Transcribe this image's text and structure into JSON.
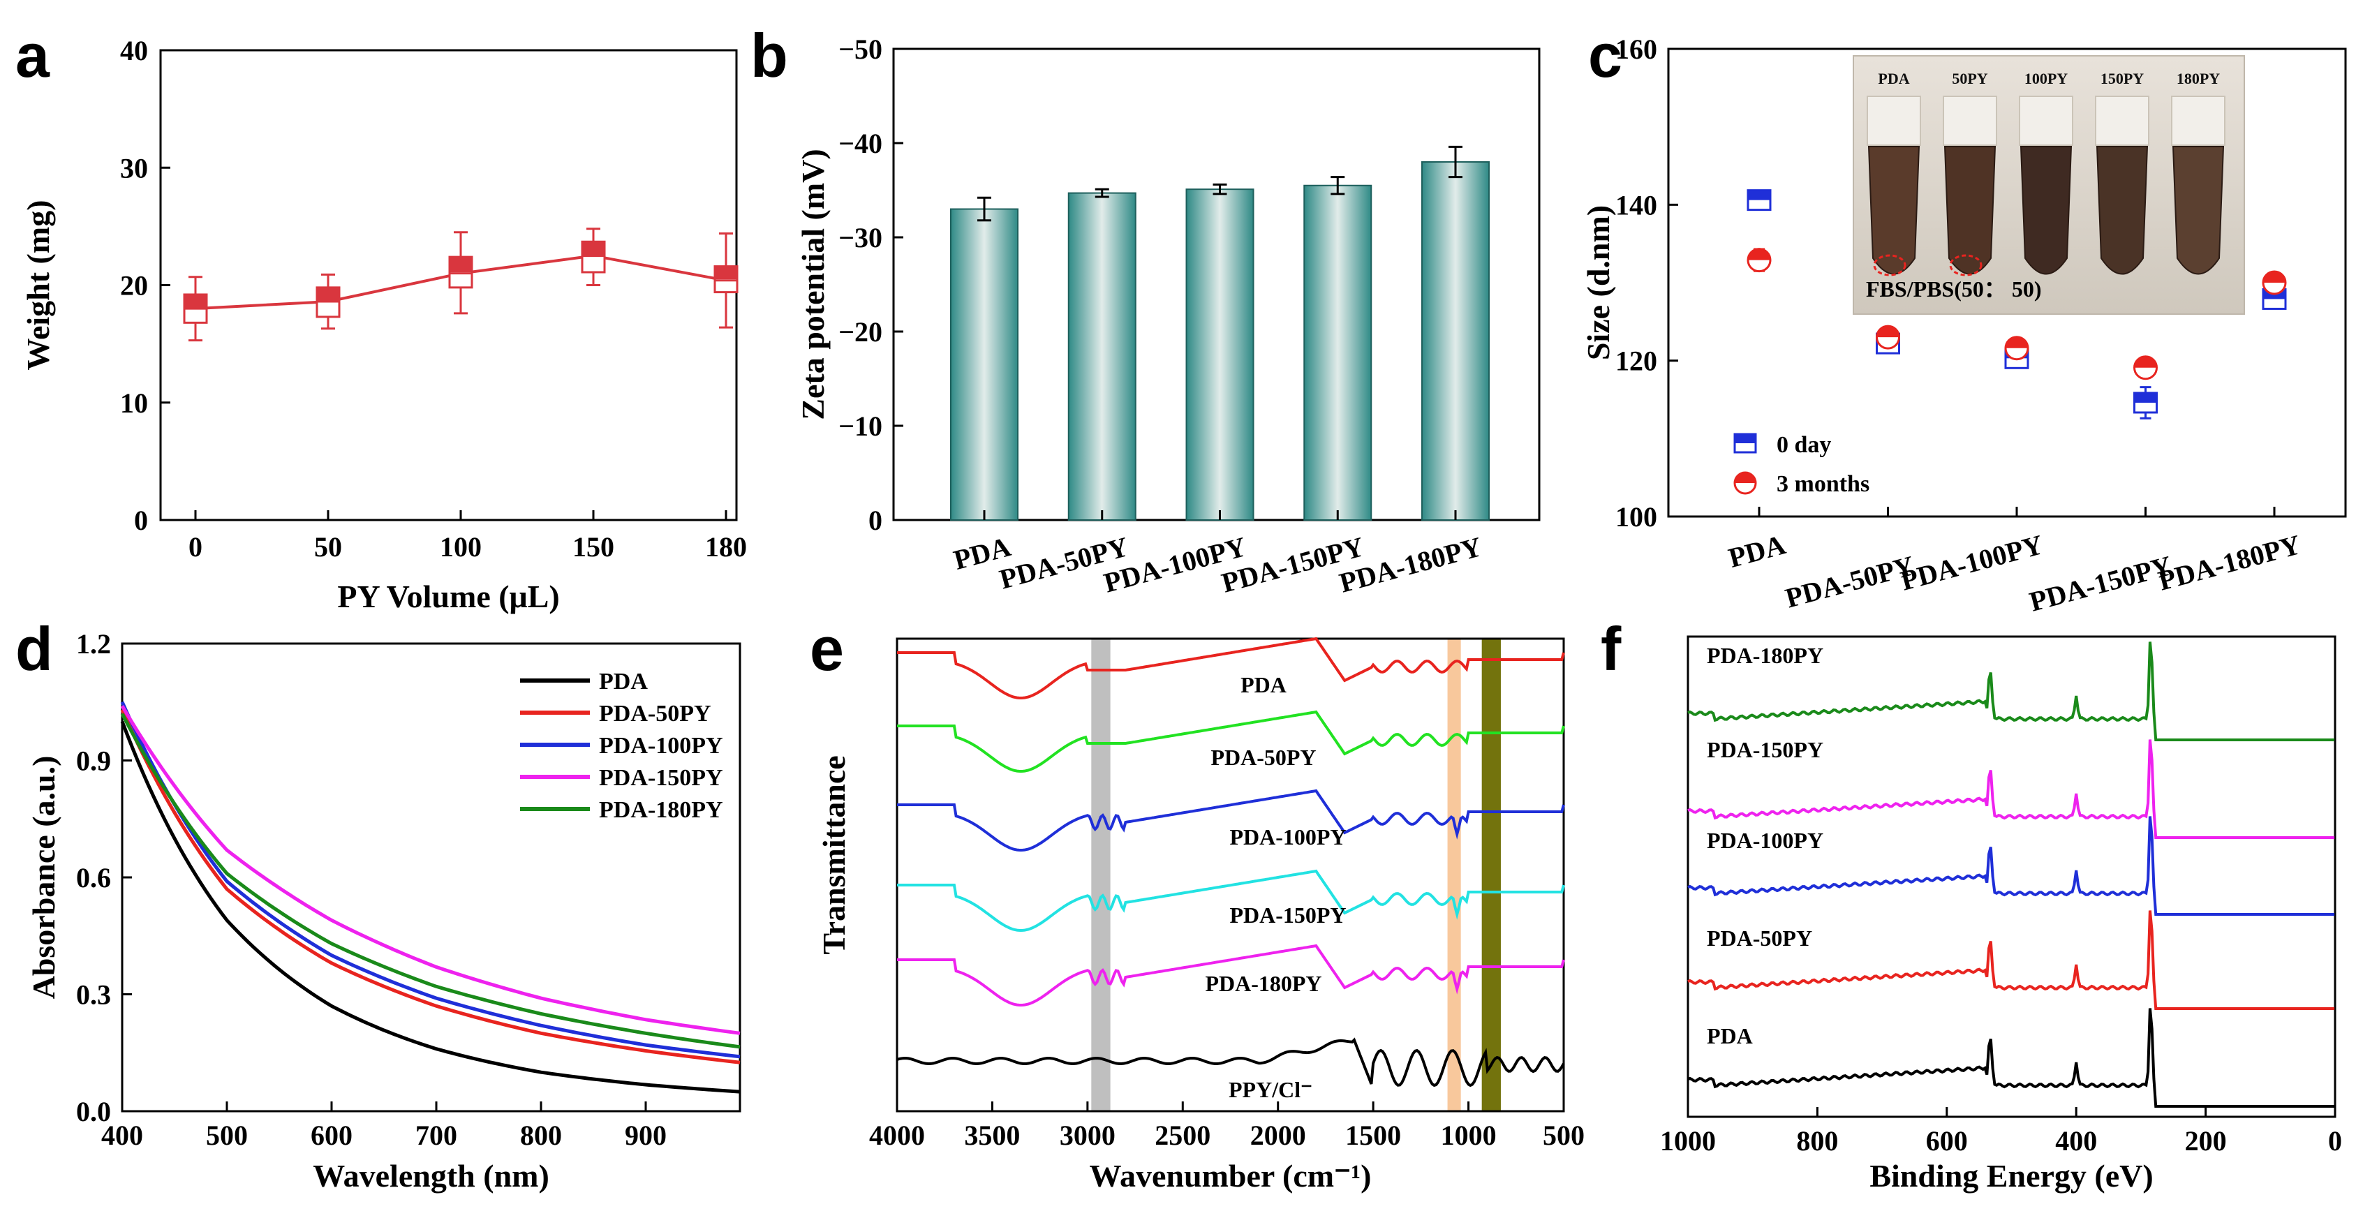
{
  "chart_data": [
    {
      "id": "a",
      "type": "line",
      "panel_label": "a",
      "categories": [
        "0",
        "50",
        "100",
        "150",
        "180"
      ],
      "series": [
        {
          "name": "Weight",
          "color": "#d9363e",
          "values": [
            18.0,
            18.6,
            21.0,
            22.5,
            20.4
          ],
          "box_low": [
            16.8,
            17.3,
            19.8,
            21.1,
            19.4
          ],
          "box_high": [
            19.2,
            19.8,
            22.4,
            23.7,
            21.6
          ],
          "whisker_low": [
            15.3,
            16.3,
            17.6,
            20.0,
            16.4
          ],
          "whisker_high": [
            20.7,
            20.9,
            24.5,
            24.8,
            24.4
          ]
        }
      ],
      "xlabel": "PY  Volume (μL)",
      "ylabel": "Weight (mg)",
      "ylim": [
        0,
        40
      ],
      "yticks": [
        "0",
        "10",
        "20",
        "30",
        "40"
      ]
    },
    {
      "id": "b",
      "type": "bar",
      "panel_label": "b",
      "categories": [
        "PDA",
        "PDA-50PY",
        "PDA-100PY",
        "PDA-150PY",
        "PDA-180PY"
      ],
      "values": [
        -33.0,
        -34.7,
        -35.1,
        -35.5,
        -38.0
      ],
      "errors": [
        1.2,
        0.4,
        0.5,
        0.9,
        1.6
      ],
      "xlabel": "",
      "ylabel": "Zeta potential (mV)",
      "ylim": [
        0,
        -50
      ],
      "yticks": [
        "0",
        "−10",
        "−20",
        "−30",
        "−40",
        "−50"
      ]
    },
    {
      "id": "c",
      "type": "scatter",
      "panel_label": "c",
      "categories": [
        "PDA",
        "PDA-50PY",
        "PDA-100PY",
        "PDA-150PY",
        "PDA-180PY"
      ],
      "series": [
        {
          "name": "0 day",
          "color": "#1f2fd8",
          "values": [
            140.6,
            122.2,
            120.3,
            114.6,
            127.9
          ],
          "errors": [
            1.0,
            1.2,
            1.0,
            2.0,
            1.0
          ]
        },
        {
          "name": "3 months",
          "color": "#e8241f",
          "values": [
            132.9,
            123.0,
            121.6,
            119.1,
            130.0
          ],
          "errors": [
            1.4,
            1.0,
            1.2,
            0.6,
            1.0
          ]
        }
      ],
      "xlabel": "",
      "ylabel": "Size (d.nm)",
      "ylim": [
        100,
        160
      ],
      "yticks": [
        "100",
        "120",
        "140",
        "160"
      ],
      "inset": {
        "tube_labels": [
          "PDA",
          "50PY",
          "100PY",
          "150PY",
          "180PY"
        ],
        "caption": "FBS/PBS(50： 50)"
      }
    },
    {
      "id": "d",
      "type": "line",
      "panel_label": "d",
      "x": [
        400,
        990
      ],
      "series": [
        {
          "name": "PDA",
          "color": "#000000",
          "values_at": {
            "400": 1.0,
            "500": 0.49,
            "600": 0.27,
            "700": 0.16,
            "800": 0.1,
            "900": 0.068,
            "990": 0.05
          }
        },
        {
          "name": "PDA-50PY",
          "color": "#e8241f",
          "values_at": {
            "400": 1.03,
            "500": 0.57,
            "600": 0.38,
            "700": 0.27,
            "800": 0.2,
            "900": 0.155,
            "990": 0.125
          }
        },
        {
          "name": "PDA-100PY",
          "color": "#1f2fd8",
          "values_at": {
            "400": 1.05,
            "500": 0.59,
            "600": 0.4,
            "700": 0.29,
            "800": 0.22,
            "900": 0.17,
            "990": 0.14
          }
        },
        {
          "name": "PDA-150PY",
          "color": "#ee22ee",
          "values_at": {
            "400": 1.04,
            "500": 0.67,
            "600": 0.49,
            "700": 0.37,
            "800": 0.29,
            "900": 0.235,
            "990": 0.2
          }
        },
        {
          "name": "PDA-180PY",
          "color": "#1a8a1a",
          "values_at": {
            "400": 1.02,
            "500": 0.61,
            "600": 0.43,
            "700": 0.32,
            "800": 0.25,
            "900": 0.2,
            "990": 0.165
          }
        }
      ],
      "xlabel": "Wavelength (nm)",
      "ylabel": "Absorbance (a.u.)",
      "xlim": [
        400,
        990
      ],
      "ylim": [
        0,
        1.2
      ],
      "xticks": [
        "400",
        "500",
        "600",
        "700",
        "800",
        "900"
      ],
      "yticks": [
        "0.0",
        "0.3",
        "0.6",
        "0.9",
        "1.2"
      ],
      "legend": [
        "PDA",
        "PDA-50PY",
        "PDA-100PY",
        "PDA-150PY",
        "PDA-180PY"
      ]
    },
    {
      "id": "e",
      "type": "line",
      "panel_label": "e",
      "series_labels": [
        "PDA",
        "PDA-50PY",
        "PDA-100PY",
        "PDA-150PY",
        "PDA-180PY",
        "PPY/Cl⁻"
      ],
      "series_colors": [
        "#e8241f",
        "#22e222",
        "#1f2fd8",
        "#22e2e2",
        "#ee22ee",
        "#000000"
      ],
      "highlight_bands_cm": [
        [
          2980,
          2880
        ],
        [
          1110,
          1040
        ],
        [
          930,
          830
        ]
      ],
      "highlight_colors": [
        "#a9a9a9",
        "#f4a35a",
        "#6b6b00"
      ],
      "xlabel": "Wavenumber (cm⁻¹)",
      "ylabel": "Transmittance",
      "xlim": [
        4000,
        500
      ],
      "xticks": [
        "4000",
        "3500",
        "3000",
        "2500",
        "2000",
        "1500",
        "1000",
        "500"
      ]
    },
    {
      "id": "f",
      "type": "line",
      "panel_label": "f",
      "series_labels": [
        "PDA-180PY",
        "PDA-150PY",
        "PDA-100PY",
        "PDA-50PY",
        "PDA"
      ],
      "series_colors": [
        "#1a8a1a",
        "#ee22ee",
        "#1f2fd8",
        "#e8241f",
        "#000000"
      ],
      "peaks_eV": [
        533,
        400,
        285
      ],
      "xlabel": "Binding Energy (eV)",
      "xlim": [
        1000,
        0
      ],
      "xticks": [
        "1000",
        "800",
        "600",
        "400",
        "200",
        "0"
      ]
    }
  ]
}
